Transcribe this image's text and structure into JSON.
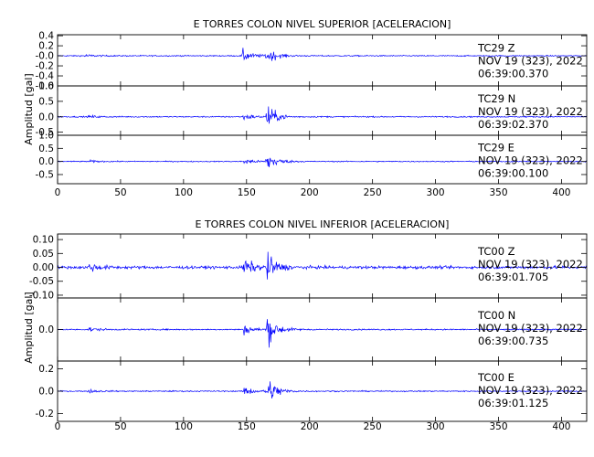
{
  "chart_data": [
    {
      "type": "line",
      "title": "E TORRES COLON NIVEL SUPERIOR [ACELERACION]",
      "ylabel": "Amplitud [gal]",
      "xlabel": "",
      "xlim": [
        0,
        420
      ],
      "x_ticks": [
        0,
        50,
        100,
        150,
        200,
        250,
        300,
        350,
        400
      ],
      "grid": false,
      "line_color": "#0000ff",
      "panels": [
        {
          "station": "TC29 Z",
          "date": "NOV 19 (323), 2022",
          "time": "06:39:00.370",
          "ylim": [
            -0.6,
            0.42
          ],
          "y_ticks": [
            -0.6,
            -0.4,
            -0.2,
            0.0,
            0.2,
            0.4
          ],
          "y_tick_labels": [
            "-0.6",
            "-0.4",
            "-0.2",
            "-0.0",
            "0.2",
            "0.4"
          ],
          "trace": {
            "noise_level": 0.02,
            "events": [
              {
                "t": 22,
                "peak": 0.05
              },
              {
                "t": 147,
                "peak": 0.22
              },
              {
                "t": 166,
                "peak": 0.28
              }
            ]
          }
        },
        {
          "station": "TC29 N",
          "date": "NOV 19 (323), 2022",
          "time": "06:39:02.370",
          "ylim": [
            -0.6,
            1.0
          ],
          "y_ticks": [
            -0.5,
            0.0,
            0.5,
            1.0
          ],
          "y_tick_labels": [
            "-0.5",
            "0.0",
            "0.5",
            "1.0"
          ],
          "trace": {
            "noise_level": 0.035,
            "events": [
              {
                "t": 25,
                "peak": 0.08
              },
              {
                "t": 148,
                "peak": 0.2
              },
              {
                "t": 166,
                "peak": 0.72
              }
            ]
          }
        },
        {
          "station": "TC29 E",
          "date": "NOV 19 (323), 2022",
          "time": "06:39:00.100",
          "ylim": [
            -0.85,
            1.0
          ],
          "y_ticks": [
            -0.5,
            0.0,
            0.5,
            1.0
          ],
          "y_tick_labels": [
            "-0.5",
            "0.0",
            "0.5",
            "1.0"
          ],
          "trace": {
            "noise_level": 0.035,
            "events": [
              {
                "t": 25,
                "peak": 0.08
              },
              {
                "t": 148,
                "peak": 0.22
              },
              {
                "t": 166,
                "peak": 0.72
              }
            ]
          }
        }
      ]
    },
    {
      "type": "line",
      "title": "E TORRES COLON NIVEL INFERIOR [ACELERACION]",
      "ylabel": "Amplitud [gal]",
      "xlabel": "",
      "xlim": [
        0,
        420
      ],
      "x_ticks": [
        0,
        50,
        100,
        150,
        200,
        250,
        300,
        350,
        400
      ],
      "grid": false,
      "line_color": "#0000ff",
      "panels": [
        {
          "station": "TC00 Z",
          "date": "NOV 19 (323), 2022",
          "time": "06:39:01.705",
          "ylim": [
            -0.11,
            0.12
          ],
          "y_ticks": [
            -0.1,
            -0.05,
            0.0,
            0.05,
            0.1
          ],
          "y_tick_labels": [
            "-0.10",
            "-0.05",
            "0.00",
            "0.05",
            "0.10"
          ],
          "trace": {
            "noise_level": 0.009,
            "events": [
              {
                "t": 25,
                "peak": 0.03
              },
              {
                "t": 148,
                "peak": 0.06
              },
              {
                "t": 166,
                "peak": 0.09
              }
            ]
          }
        },
        {
          "station": "TC00 N",
          "date": "NOV 19 (323), 2022",
          "time": "06:39:00.735",
          "ylim": [
            -0.22,
            0.22
          ],
          "y_ticks": [
            0.0
          ],
          "y_tick_labels": [
            "0.0"
          ],
          "trace": {
            "noise_level": 0.008,
            "events": [
              {
                "t": 25,
                "peak": 0.025
              },
              {
                "t": 148,
                "peak": 0.06
              },
              {
                "t": 166,
                "peak": 0.2
              }
            ]
          }
        },
        {
          "station": "TC00 E",
          "date": "NOV 19 (323), 2022",
          "time": "06:39:01.125",
          "ylim": [
            -0.27,
            0.27
          ],
          "y_ticks": [
            -0.2,
            0.0,
            0.2
          ],
          "y_tick_labels": [
            "-0.2",
            "0.0",
            "0.2"
          ],
          "trace": {
            "noise_level": 0.009,
            "events": [
              {
                "t": 25,
                "peak": 0.03
              },
              {
                "t": 148,
                "peak": 0.08
              },
              {
                "t": 166,
                "peak": 0.25
              }
            ]
          }
        }
      ]
    }
  ]
}
